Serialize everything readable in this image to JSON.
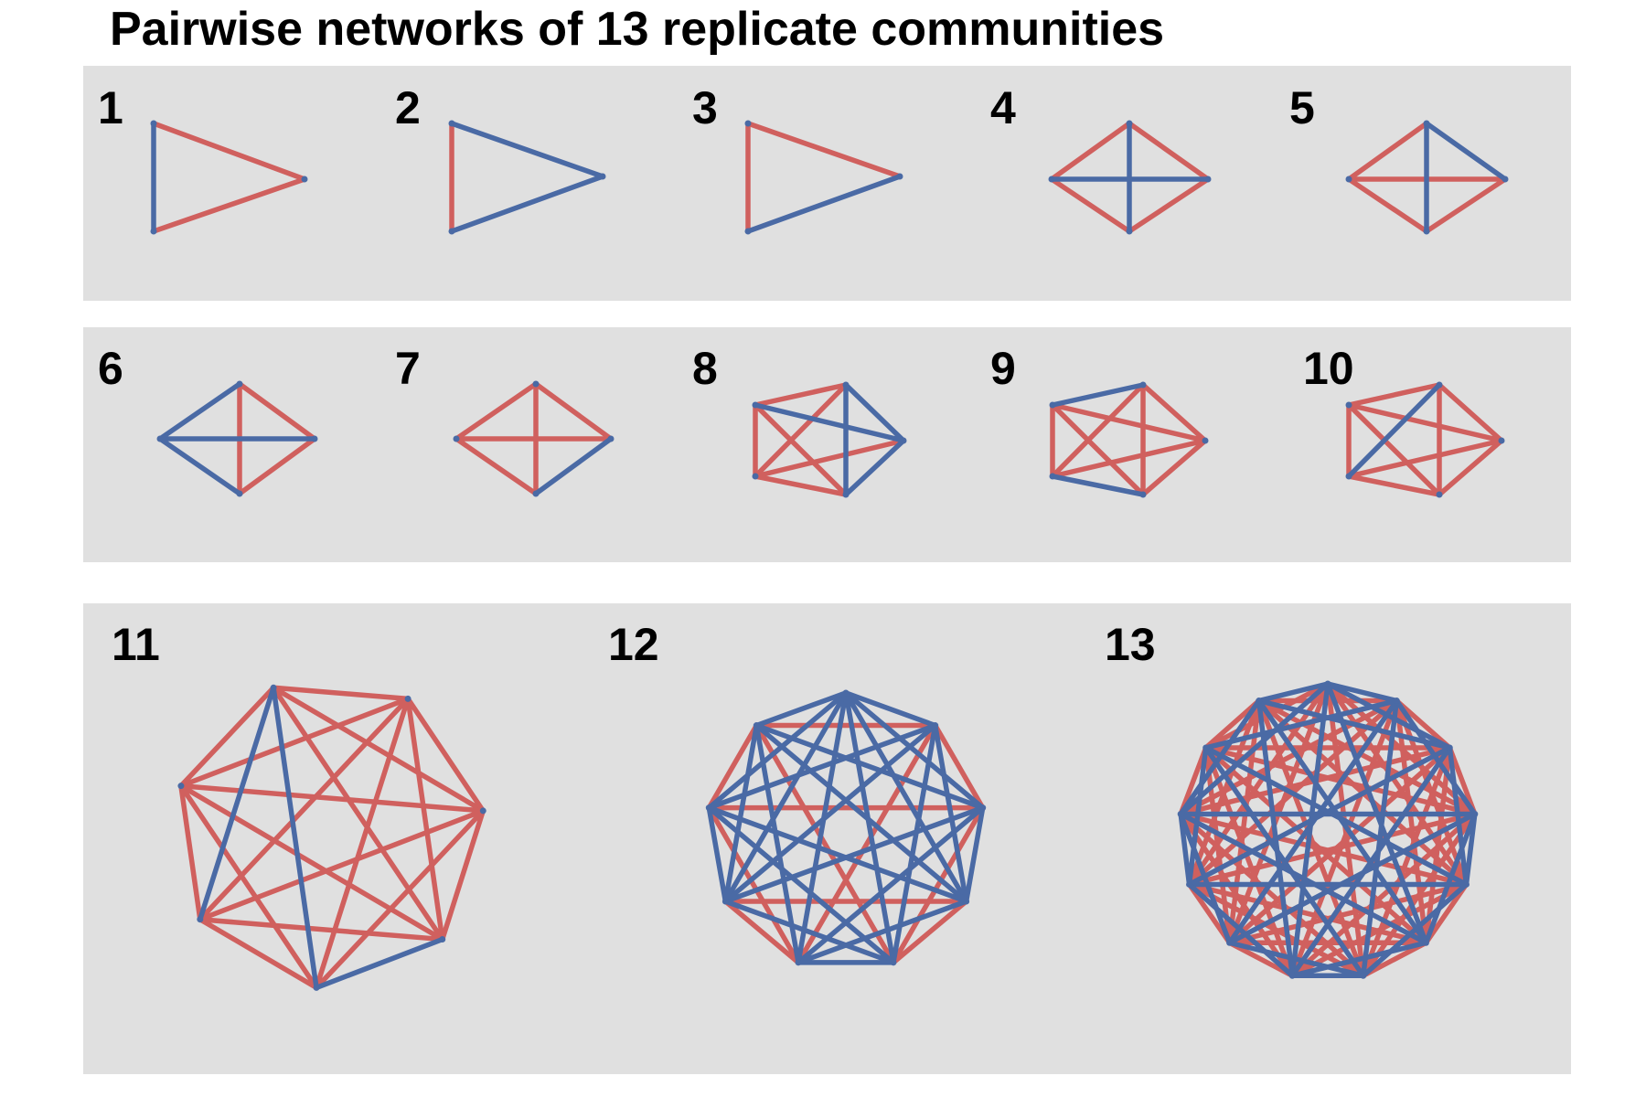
{
  "title": "Pairwise networks of 13 replicate communities",
  "colors": {
    "red": "#d0605e",
    "blue": "#4a6aa5",
    "panel_bg": "#e0e0e0"
  },
  "networks": [
    {
      "label": "1",
      "edges": [
        [
          0,
          1,
          "blue"
        ],
        [
          1,
          2,
          "red"
        ],
        [
          2,
          0,
          "red"
        ]
      ]
    },
    {
      "label": "2",
      "edges": [
        [
          0,
          1,
          "red"
        ],
        [
          1,
          2,
          "blue"
        ],
        [
          2,
          0,
          "blue"
        ]
      ]
    },
    {
      "label": "3",
      "edges": [
        [
          0,
          1,
          "red"
        ],
        [
          1,
          2,
          "blue"
        ],
        [
          2,
          0,
          "red"
        ]
      ]
    },
    {
      "label": "4",
      "edges": [
        [
          0,
          1,
          "red"
        ],
        [
          1,
          2,
          "red"
        ],
        [
          2,
          3,
          "red"
        ],
        [
          3,
          0,
          "red"
        ],
        [
          0,
          2,
          "blue"
        ],
        [
          1,
          3,
          "blue"
        ]
      ]
    },
    {
      "label": "5",
      "edges": [
        [
          0,
          1,
          "red"
        ],
        [
          1,
          2,
          "blue"
        ],
        [
          2,
          3,
          "red"
        ],
        [
          3,
          0,
          "red"
        ],
        [
          0,
          2,
          "red"
        ],
        [
          1,
          3,
          "blue"
        ]
      ]
    },
    {
      "label": "6",
      "edges": [
        [
          0,
          1,
          "blue"
        ],
        [
          1,
          2,
          "red"
        ],
        [
          2,
          3,
          "red"
        ],
        [
          3,
          0,
          "blue"
        ],
        [
          0,
          2,
          "blue"
        ],
        [
          1,
          3,
          "red"
        ]
      ]
    },
    {
      "label": "7",
      "edges": [
        [
          0,
          1,
          "red"
        ],
        [
          1,
          2,
          "red"
        ],
        [
          2,
          3,
          "blue"
        ],
        [
          3,
          0,
          "red"
        ],
        [
          0,
          2,
          "red"
        ],
        [
          1,
          3,
          "red"
        ]
      ]
    },
    {
      "label": "8",
      "edges": [
        [
          0,
          1,
          "red"
        ],
        [
          1,
          2,
          "blue"
        ],
        [
          2,
          3,
          "blue"
        ],
        [
          3,
          4,
          "red"
        ],
        [
          4,
          0,
          "red"
        ],
        [
          0,
          2,
          "blue"
        ],
        [
          0,
          3,
          "red"
        ],
        [
          1,
          3,
          "blue"
        ],
        [
          1,
          4,
          "red"
        ],
        [
          2,
          4,
          "red"
        ]
      ]
    },
    {
      "label": "9",
      "edges": [
        [
          0,
          1,
          "blue"
        ],
        [
          1,
          2,
          "red"
        ],
        [
          2,
          3,
          "red"
        ],
        [
          3,
          4,
          "blue"
        ],
        [
          4,
          0,
          "red"
        ],
        [
          0,
          2,
          "red"
        ],
        [
          0,
          3,
          "red"
        ],
        [
          1,
          3,
          "red"
        ],
        [
          1,
          4,
          "red"
        ],
        [
          2,
          4,
          "red"
        ]
      ]
    },
    {
      "label": "10",
      "edges": [
        [
          0,
          1,
          "red"
        ],
        [
          1,
          2,
          "red"
        ],
        [
          2,
          3,
          "red"
        ],
        [
          3,
          4,
          "red"
        ],
        [
          4,
          0,
          "red"
        ],
        [
          0,
          2,
          "red"
        ],
        [
          0,
          3,
          "red"
        ],
        [
          1,
          3,
          "red"
        ],
        [
          1,
          4,
          "blue"
        ],
        [
          2,
          4,
          "red"
        ]
      ]
    },
    {
      "label": "11",
      "nodes": 7,
      "pattern": "mixed-7"
    },
    {
      "label": "12",
      "nodes": 9,
      "pattern": "mixed-9"
    },
    {
      "label": "13",
      "nodes": 13,
      "pattern": "mixed-13"
    }
  ]
}
